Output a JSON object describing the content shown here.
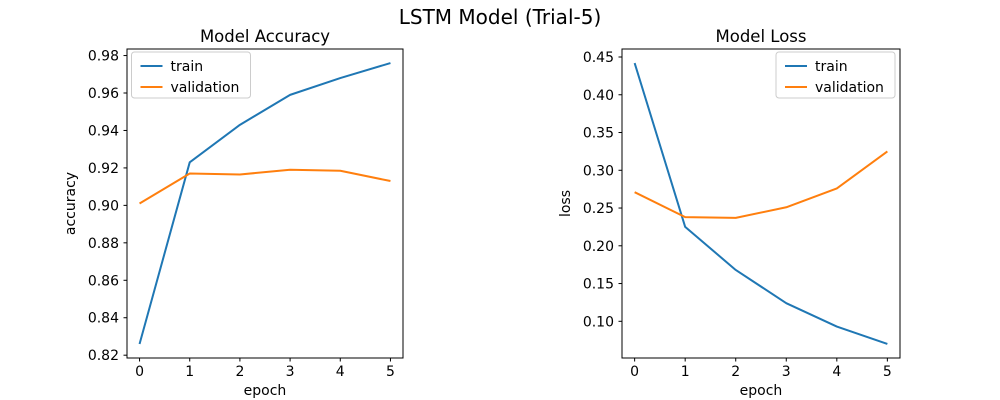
{
  "figure": {
    "suptitle": "LSTM Model (Trial-5)"
  },
  "chart_data": [
    {
      "type": "line",
      "title": "Model Accuracy",
      "xlabel": "epoch",
      "ylabel": "accuracy",
      "x": [
        0,
        1,
        2,
        3,
        4,
        5
      ],
      "xticks": [
        0,
        1,
        2,
        3,
        4,
        5
      ],
      "xtick_labels": [
        "0",
        "1",
        "2",
        "3",
        "4",
        "5"
      ],
      "yticks": [
        0.82,
        0.84,
        0.86,
        0.88,
        0.9,
        0.92,
        0.94,
        0.96,
        0.98
      ],
      "ytick_labels": [
        "0.82",
        "0.84",
        "0.86",
        "0.88",
        "0.90",
        "0.92",
        "0.94",
        "0.96",
        "0.98"
      ],
      "xlim": [
        -0.25,
        5.25
      ],
      "ylim": [
        0.8185,
        0.9835
      ],
      "grid": false,
      "legend_position": "upper-left",
      "series": [
        {
          "name": "train",
          "color": "#1f77b4",
          "values": [
            0.826,
            0.923,
            0.943,
            0.959,
            0.968,
            0.976
          ]
        },
        {
          "name": "validation",
          "color": "#ff7f0e",
          "values": [
            0.901,
            0.917,
            0.9165,
            0.919,
            0.9185,
            0.913
          ]
        }
      ]
    },
    {
      "type": "line",
      "title": "Model Loss",
      "xlabel": "epoch",
      "ylabel": "loss",
      "x": [
        0,
        1,
        2,
        3,
        4,
        5
      ],
      "xticks": [
        0,
        1,
        2,
        3,
        4,
        5
      ],
      "xtick_labels": [
        "0",
        "1",
        "2",
        "3",
        "4",
        "5"
      ],
      "yticks": [
        0.1,
        0.15,
        0.2,
        0.25,
        0.3,
        0.35,
        0.4,
        0.45
      ],
      "ytick_labels": [
        "0.10",
        "0.15",
        "0.20",
        "0.25",
        "0.30",
        "0.35",
        "0.40",
        "0.45"
      ],
      "xlim": [
        -0.25,
        5.25
      ],
      "ylim": [
        0.0514,
        0.4606
      ],
      "grid": false,
      "legend_position": "upper-right",
      "series": [
        {
          "name": "train",
          "color": "#1f77b4",
          "values": [
            0.442,
            0.225,
            0.168,
            0.124,
            0.093,
            0.07
          ]
        },
        {
          "name": "validation",
          "color": "#ff7f0e",
          "values": [
            0.271,
            0.238,
            0.237,
            0.251,
            0.276,
            0.325
          ]
        }
      ]
    }
  ]
}
